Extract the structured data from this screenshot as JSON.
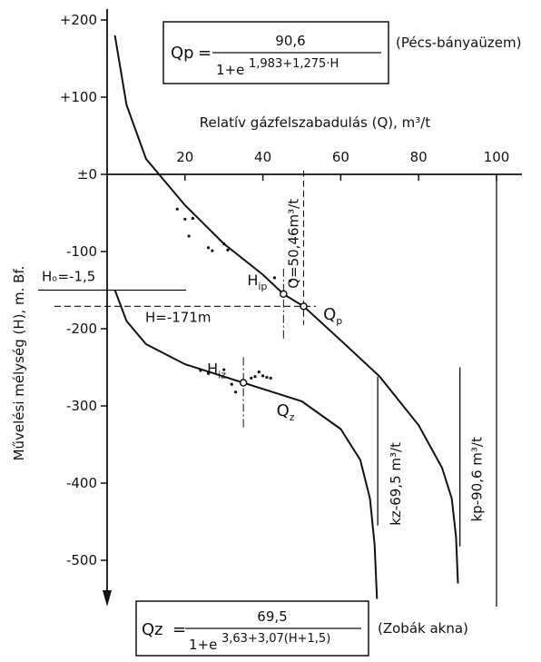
{
  "chart_data": {
    "type": "line",
    "title": "",
    "xlabel": "Relatív gázfelszabadulás (Q), m³/t",
    "ylabel": "Művelési mélység (H), m. Bf.",
    "xlim": [
      0,
      100
    ],
    "ylim": [
      -560,
      200
    ],
    "x_ticks": [
      {
        "value": 20,
        "label": "20"
      },
      {
        "value": 40,
        "label": "40"
      },
      {
        "value": 60,
        "label": "60"
      },
      {
        "value": 80,
        "label": "80"
      },
      {
        "value": 100,
        "label": "100"
      }
    ],
    "y_ticks": [
      {
        "value": 200,
        "label": "+200"
      },
      {
        "value": 100,
        "label": "+100"
      },
      {
        "value": 0,
        "label": "±0"
      },
      {
        "value": -100,
        "label": "-100"
      },
      {
        "value": -200,
        "label": "-200"
      },
      {
        "value": -300,
        "label": "-300"
      },
      {
        "value": -400,
        "label": "-400"
      },
      {
        "value": -500,
        "label": "-500"
      }
    ],
    "grid": false,
    "series": [
      {
        "name": "Qp",
        "asymptote_x": 90.6,
        "points": [
          [
            2,
            180
          ],
          [
            5,
            90
          ],
          [
            10,
            20
          ],
          [
            20,
            -40
          ],
          [
            30,
            -90
          ],
          [
            40,
            -130
          ],
          [
            45.3,
            -155
          ],
          [
            50.5,
            -171
          ],
          [
            60,
            -215
          ],
          [
            70,
            -262
          ],
          [
            80,
            -325
          ],
          [
            86,
            -380
          ],
          [
            88.5,
            -420
          ],
          [
            89.6,
            -470
          ],
          [
            90.1,
            -530
          ]
        ]
      },
      {
        "name": "Qz",
        "asymptote_x": 69.5,
        "points": [
          [
            2,
            -150
          ],
          [
            5,
            -190
          ],
          [
            10,
            -220
          ],
          [
            20,
            -246
          ],
          [
            30,
            -262
          ],
          [
            35,
            -270
          ],
          [
            40,
            -278
          ],
          [
            50,
            -294
          ],
          [
            60,
            -330
          ],
          [
            65,
            -370
          ],
          [
            67.5,
            -420
          ],
          [
            68.7,
            -480
          ],
          [
            69.3,
            -550
          ]
        ]
      }
    ],
    "scatter_points": [
      [
        18,
        -45
      ],
      [
        20,
        -58
      ],
      [
        22,
        -57
      ],
      [
        21,
        -80
      ],
      [
        26,
        -95
      ],
      [
        27,
        -99
      ],
      [
        30,
        -90
      ],
      [
        31,
        -98
      ],
      [
        43,
        -134
      ],
      [
        47,
        -138
      ],
      [
        24,
        -254
      ],
      [
        26,
        -258
      ],
      [
        30,
        -253
      ],
      [
        32,
        -272
      ],
      [
        33,
        -282
      ],
      [
        35,
        -268
      ],
      [
        37,
        -264
      ],
      [
        38,
        -262
      ],
      [
        39,
        -256
      ],
      [
        40,
        -261
      ],
      [
        41,
        -263
      ],
      [
        42,
        -264
      ]
    ],
    "reference_lines": {
      "Ho": {
        "value": -1.5,
        "label": "Hₒ=-1,5"
      },
      "H": {
        "value": -171,
        "label": "H=-171m"
      },
      "Q": {
        "value": 50.46,
        "label": "Q=50,46m³/t"
      },
      "kz": {
        "value": 69.5,
        "label": "kz-69,5 m³/t"
      },
      "kp": {
        "value": 90.6,
        "label": "kp-90,6 m³/t"
      }
    },
    "inflection_points": [
      {
        "name": "Hip",
        "x": 45.3,
        "y": -155
      },
      {
        "name": "Hiz",
        "x": 35,
        "y": -270
      }
    ],
    "formula_p": {
      "lhs": "Qp",
      "numerator": "90,6",
      "denominator": "1+e",
      "exponent": "1,983+1,275·H",
      "note": "(Pécs-bányaüzem)"
    },
    "formula_z": {
      "lhs": "Qz",
      "numerator": "69,5",
      "denominator": "1+e",
      "exponent": "3,63+3,07(H+1,5)",
      "note": "(Zobák akna)"
    }
  }
}
